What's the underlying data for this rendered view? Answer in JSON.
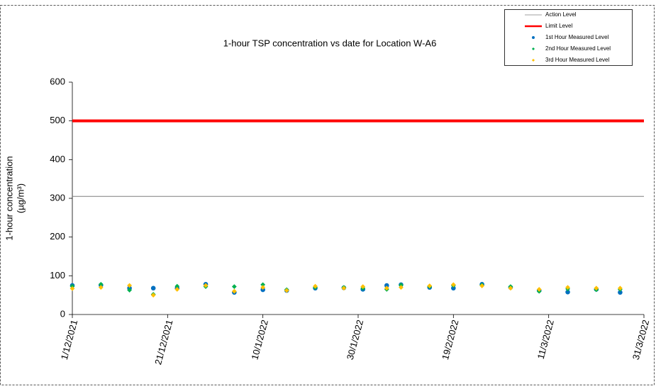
{
  "chart_data": {
    "type": "scatter",
    "title": "1-hour TSP concentration vs date for Location  W-A6",
    "y_label": [
      "1-hour concentration",
      "(µg/m³)"
    ],
    "x": [
      "2021-12-01",
      "2021-12-07",
      "2021-12-13",
      "2021-12-18",
      "2021-12-23",
      "2021-12-29",
      "2022-01-04",
      "2022-01-10",
      "2022-01-15",
      "2022-01-21",
      "2022-01-27",
      "2022-01-31",
      "2022-02-05",
      "2022-02-08",
      "2022-02-14",
      "2022-02-19",
      "2022-02-25",
      "2022-03-03",
      "2022-03-09",
      "2022-03-15",
      "2022-03-21",
      "2022-03-26"
    ],
    "series": [
      {
        "name": "1st Hour Measured Level",
        "color": "#0070c0",
        "marker": "circle",
        "values": [
          75,
          76,
          68,
          68,
          68,
          78,
          57,
          64,
          62,
          68,
          69,
          65,
          75,
          77,
          70,
          68,
          78,
          70,
          62,
          58,
          65,
          57
        ]
      },
      {
        "name": "2nd Hour Measured Level",
        "color": "#00b050",
        "marker": "diamond",
        "values": [
          73,
          78,
          63,
          52,
          73,
          72,
          72,
          77,
          64,
          70,
          70,
          68,
          65,
          76,
          72,
          75,
          76,
          72,
          60,
          66,
          64,
          65
        ]
      },
      {
        "name": "3rd Hour Measured Level",
        "color": "#ffc000",
        "marker": "diamond",
        "values": [
          67,
          70,
          75,
          50,
          65,
          75,
          60,
          70,
          62,
          73,
          68,
          72,
          68,
          70,
          74,
          77,
          74,
          68,
          65,
          70,
          68,
          68
        ]
      }
    ],
    "reference_lines": [
      {
        "name": "Action Level",
        "value": 305,
        "color": "#7f7f7f"
      },
      {
        "name": "Limit Level",
        "value": 500,
        "color": "#ff0000"
      }
    ],
    "xlim": [
      "2021-12-01",
      "2022-03-31"
    ],
    "xticks": [
      {
        "value": "2021-12-01",
        "label": "1/12/2021"
      },
      {
        "value": "2021-12-21",
        "label": "21/12/2021"
      },
      {
        "value": "2022-01-10",
        "label": "10/1/2022"
      },
      {
        "value": "2022-01-30",
        "label": "30/1/2022"
      },
      {
        "value": "2022-02-19",
        "label": "19/2/2022"
      },
      {
        "value": "2022-03-11",
        "label": "11/3/2022"
      },
      {
        "value": "2022-03-31",
        "label": "31/3/2022"
      }
    ],
    "ylim": [
      0,
      600
    ],
    "yticks": [
      0,
      100,
      200,
      300,
      400,
      500,
      600
    ],
    "grid": false,
    "legend": "top-right"
  }
}
